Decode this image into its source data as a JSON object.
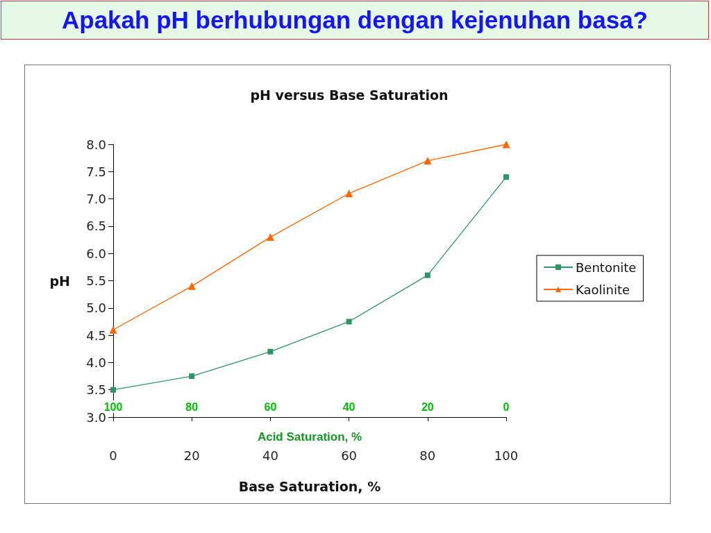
{
  "chart_data": {
    "type": "line",
    "title": "Apakah pH berhubungan dengan kejenuhan basa?",
    "subtitle": "pH versus Base Saturation",
    "xlabel": "Base Saturation, %",
    "ylabel": "pH",
    "x2label": "Acid Saturation, %",
    "x": [
      0,
      20,
      40,
      60,
      80,
      100
    ],
    "series": [
      {
        "name": "Bentonite",
        "color": "#2e9466",
        "marker": "square",
        "values": [
          3.5,
          3.75,
          4.2,
          4.75,
          5.6,
          7.4
        ]
      },
      {
        "name": "Kaolinite",
        "color": "#ff6600",
        "marker": "triangle",
        "values": [
          4.6,
          5.4,
          6.3,
          7.1,
          7.7,
          8.0
        ]
      }
    ],
    "xlim": [
      0,
      100
    ],
    "xticks": [
      0,
      20,
      40,
      60,
      80,
      100
    ],
    "ylim": [
      3,
      8
    ],
    "yticks": [
      {
        "value": 3,
        "label": "3.0"
      },
      3.5,
      {
        "value": 4,
        "label": "4.0"
      },
      4.5,
      {
        "value": 5,
        "label": "5.0"
      },
      5.5,
      {
        "value": 6,
        "label": "6.0"
      },
      6.5,
      {
        "value": 7,
        "label": "7.0"
      },
      7.5,
      {
        "value": 8,
        "label": "8.0"
      }
    ],
    "x2lim": [
      100,
      0
    ],
    "x2ticks": [
      100,
      80,
      60,
      40,
      20,
      0
    ],
    "legend": "right",
    "line_style": "solid"
  }
}
